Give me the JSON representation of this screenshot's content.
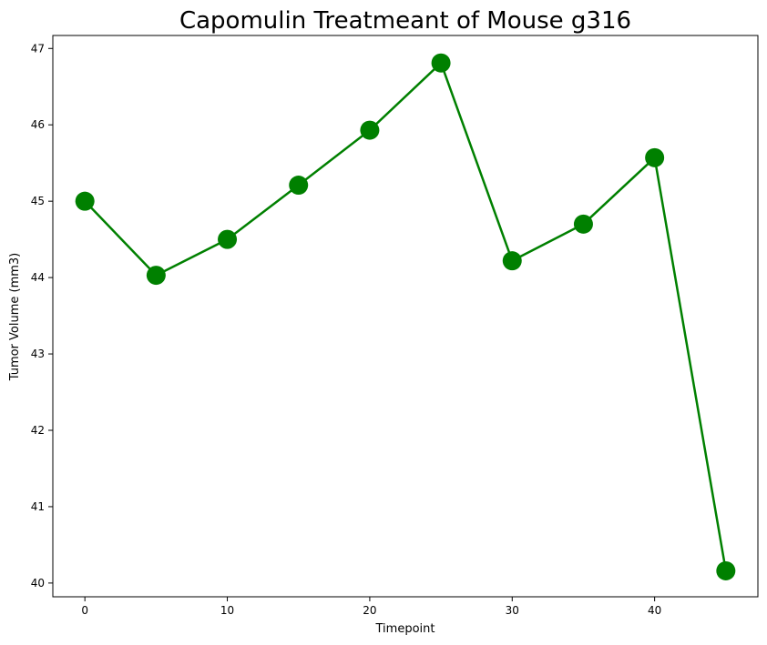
{
  "chart_data": {
    "type": "line",
    "title": "Capomulin Treatmeant of Mouse g316",
    "xlabel": "Timepoint",
    "ylabel": "Tumor Volume (mm3)",
    "xlim": [
      -2.25,
      47.25
    ],
    "ylim": [
      39.82,
      47.17
    ],
    "x_ticks": [
      0,
      10,
      20,
      30,
      40
    ],
    "y_ticks": [
      40,
      41,
      42,
      43,
      44,
      45,
      46,
      47
    ],
    "grid": false,
    "series": [
      {
        "color": "#008000",
        "marker": "circle",
        "x": [
          0,
          5,
          10,
          15,
          20,
          25,
          30,
          35,
          40,
          45
        ],
        "y": [
          45.0,
          44.03,
          44.5,
          45.21,
          45.93,
          46.81,
          44.22,
          44.7,
          45.57,
          40.16
        ]
      }
    ]
  }
}
